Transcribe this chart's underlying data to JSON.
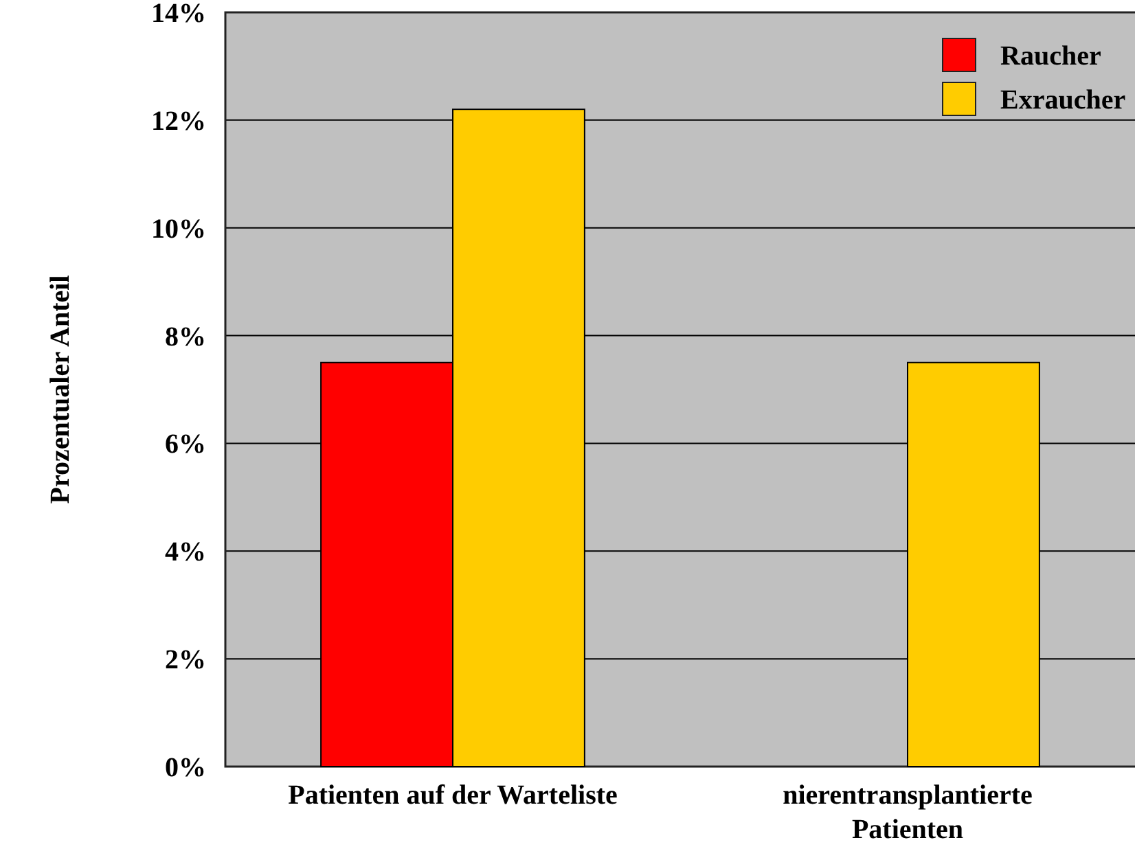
{
  "chart_data": {
    "type": "bar",
    "ylabel": "Prozentualer Anteil",
    "categories": [
      "Patienten auf der Warteliste",
      "nierentransplantierte Patienten"
    ],
    "series": [
      {
        "name": "Raucher",
        "color": "#ff0000",
        "values": [
          7.5,
          null
        ]
      },
      {
        "name": "Exraucher",
        "color": "#ffcc00",
        "values": [
          12.2,
          7.5
        ]
      }
    ],
    "ylim": [
      0,
      14
    ],
    "yticks": [
      {
        "value": 0,
        "label": "0%"
      },
      {
        "value": 2,
        "label": "2%"
      },
      {
        "value": 4,
        "label": "4%"
      },
      {
        "value": 6,
        "label": "6%"
      },
      {
        "value": 8,
        "label": "8%"
      },
      {
        "value": 10,
        "label": "10%"
      },
      {
        "value": 12,
        "label": "12%"
      },
      {
        "value": 14,
        "label": "14%"
      }
    ],
    "grid": "y",
    "legend": "top right"
  }
}
